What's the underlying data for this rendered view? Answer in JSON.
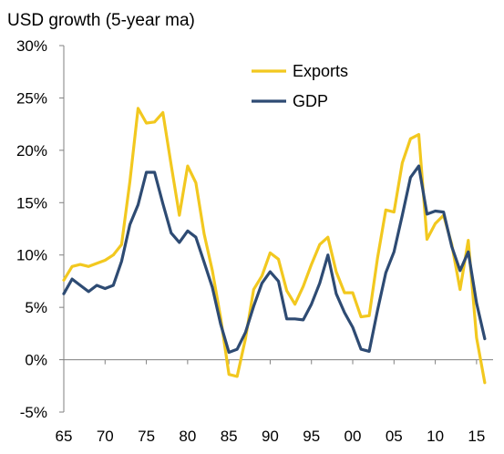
{
  "chart_data": {
    "type": "line",
    "ylabel": "USD growth (5-year ma)",
    "ylim": [
      -5,
      30
    ],
    "xlim": [
      1965,
      2017
    ],
    "y_ticks": [
      -5,
      0,
      5,
      10,
      15,
      20,
      25,
      30
    ],
    "y_tick_labels": [
      "-5%",
      "0%",
      "5%",
      "10%",
      "15%",
      "20%",
      "25%",
      "30%"
    ],
    "x_ticks": [
      1965,
      1970,
      1975,
      1980,
      1985,
      1990,
      1995,
      2000,
      2005,
      2010,
      2015
    ],
    "x_tick_labels": [
      "65",
      "70",
      "75",
      "80",
      "85",
      "90",
      "95",
      "00",
      "05",
      "10",
      "15"
    ],
    "grid": false,
    "legend_position": "top-right",
    "x": [
      1965,
      1966,
      1967,
      1968,
      1969,
      1970,
      1971,
      1972,
      1973,
      1974,
      1975,
      1976,
      1977,
      1978,
      1979,
      1980,
      1981,
      1982,
      1983,
      1984,
      1985,
      1986,
      1987,
      1988,
      1989,
      1990,
      1991,
      1992,
      1993,
      1994,
      1995,
      1996,
      1997,
      1998,
      1999,
      2000,
      2001,
      2002,
      2003,
      2004,
      2005,
      2006,
      2007,
      2008,
      2009,
      2010,
      2011,
      2012,
      2013,
      2014,
      2015,
      2016
    ],
    "series": [
      {
        "name": "Exports",
        "color": "#F2C81F",
        "values": [
          7.6,
          8.9,
          9.1,
          8.9,
          9.2,
          9.5,
          10.0,
          11.0,
          17.0,
          24.0,
          22.6,
          22.7,
          23.6,
          18.6,
          13.8,
          18.5,
          16.9,
          12.0,
          8.5,
          4.0,
          -1.4,
          -1.6,
          2.0,
          6.7,
          8.0,
          10.2,
          9.6,
          6.6,
          5.3,
          7.0,
          9.1,
          11.0,
          11.7,
          8.4,
          6.4,
          6.4,
          4.1,
          4.2,
          9.7,
          14.3,
          14.1,
          18.8,
          21.1,
          21.5,
          11.5,
          13.0,
          13.8,
          11.0,
          6.7,
          11.4,
          2.1,
          -2.2
        ]
      },
      {
        "name": "GDP",
        "color": "#2E4B73",
        "values": [
          6.3,
          7.7,
          7.1,
          6.5,
          7.1,
          6.8,
          7.1,
          9.4,
          12.9,
          14.8,
          17.9,
          17.9,
          14.9,
          12.1,
          11.2,
          12.3,
          11.7,
          9.3,
          6.9,
          3.4,
          0.7,
          1.0,
          2.6,
          5.1,
          7.3,
          8.4,
          7.5,
          3.9,
          3.9,
          3.8,
          5.3,
          7.3,
          10.0,
          6.3,
          4.5,
          3.1,
          1.0,
          0.8,
          4.7,
          8.3,
          10.3,
          13.8,
          17.4,
          18.5,
          13.9,
          14.2,
          14.1,
          10.8,
          8.5,
          10.3,
          5.4,
          2.0
        ]
      }
    ]
  }
}
